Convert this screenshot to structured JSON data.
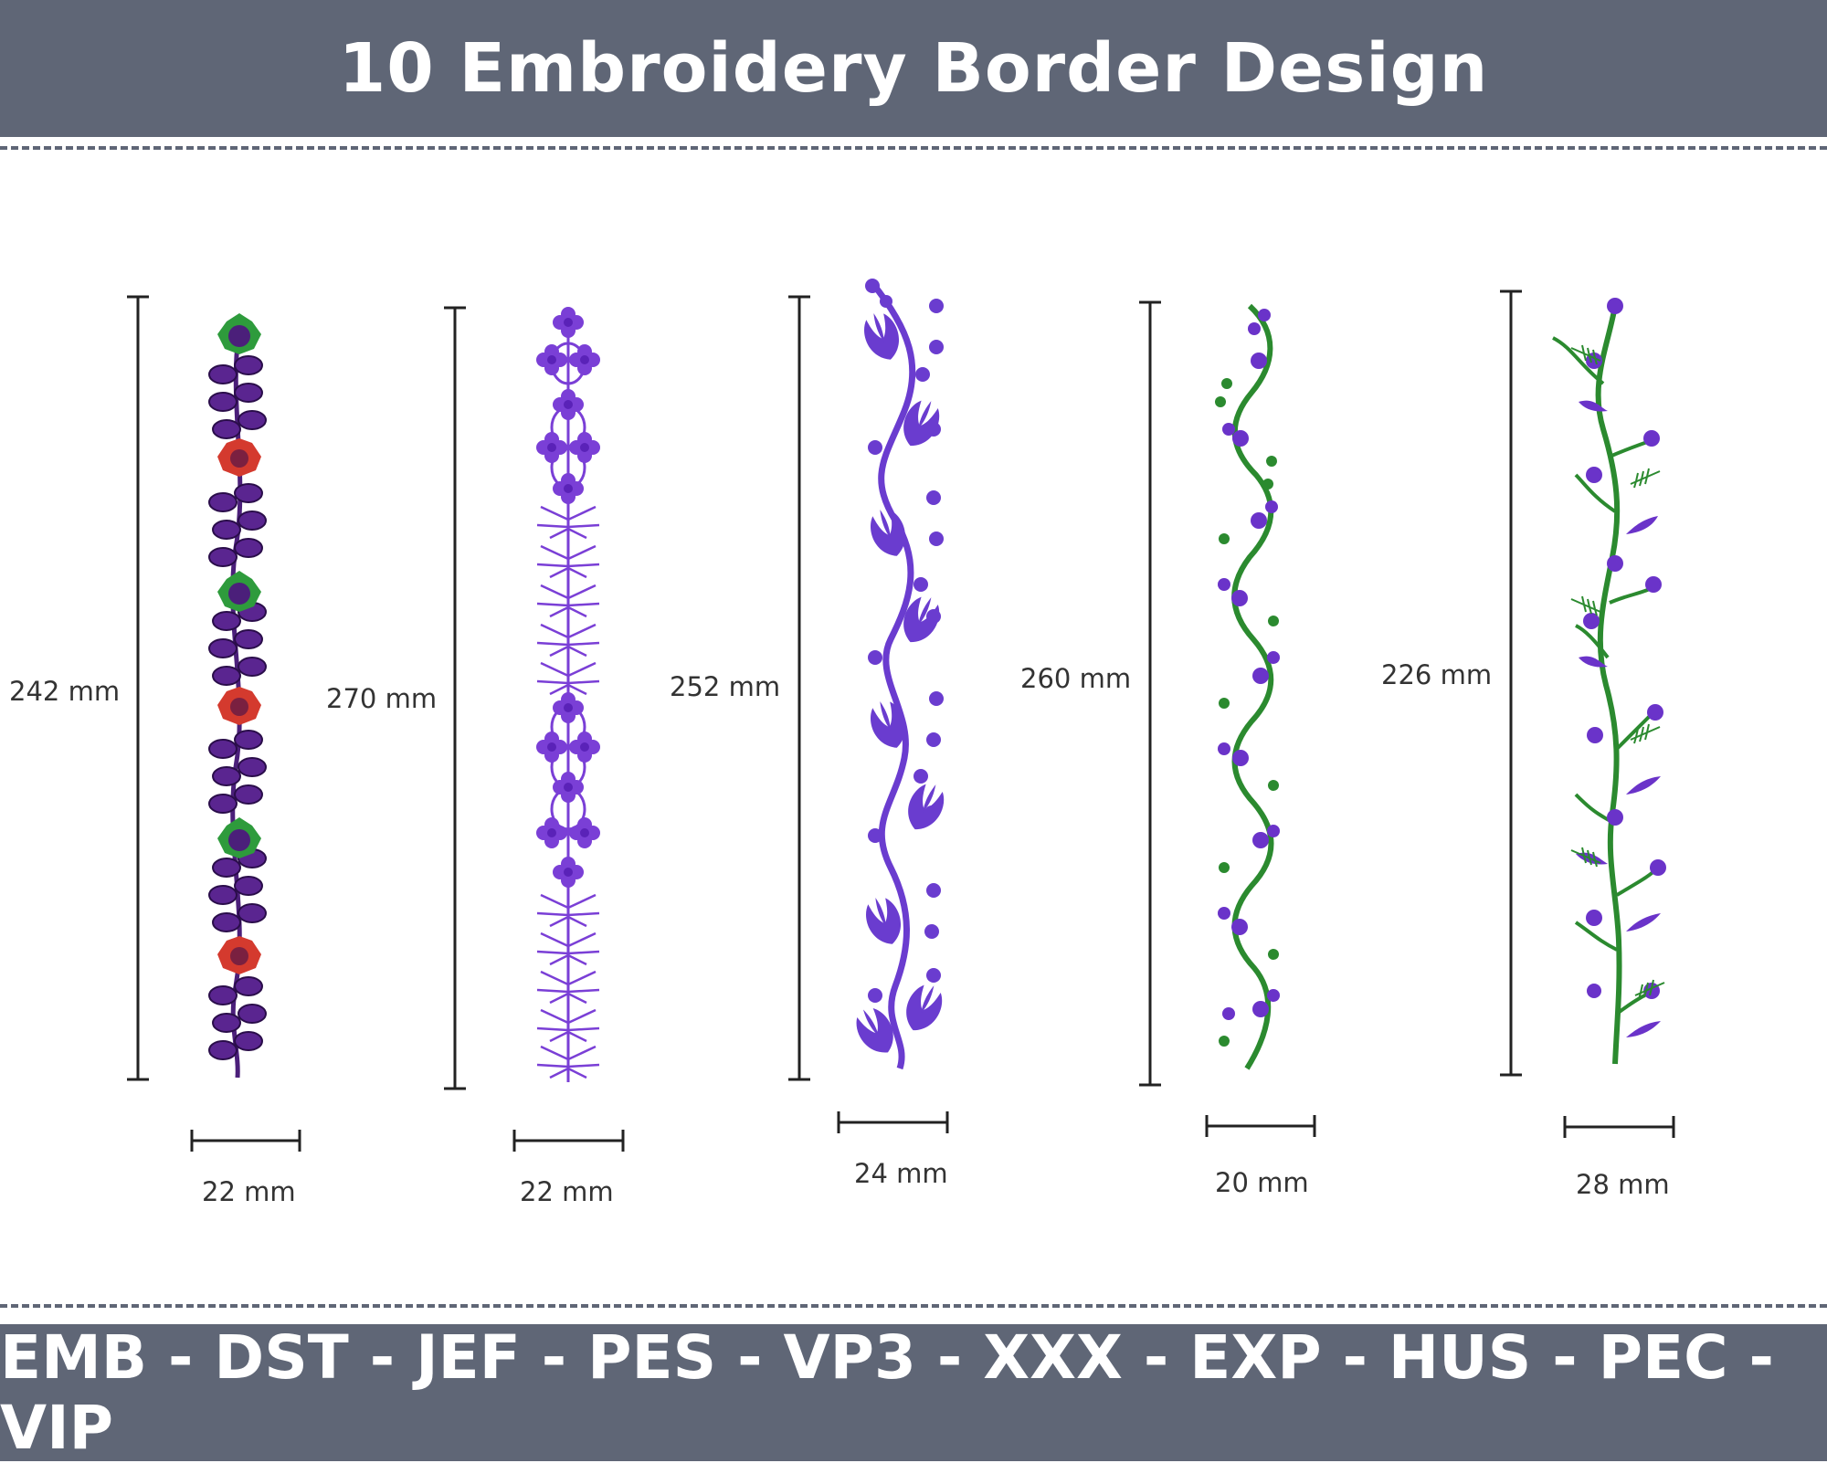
{
  "header": {
    "title": "10 Embroidery Border Design"
  },
  "footer": {
    "formats": "EMB - DST - JEF - PES - VP3 - XXX - EXP - HUS - PEC - VIP"
  },
  "designs": [
    {
      "height": "242 mm",
      "width": "22 mm",
      "colors": {
        "vine": "#4b1f7a",
        "leaf": "#5a2590",
        "flower_a": "#2e9b3c",
        "flower_b": "#d43a2e"
      }
    },
    {
      "height": "270 mm",
      "width": "22 mm",
      "colors": {
        "motif": "#7a3fd6"
      }
    },
    {
      "height": "252 mm",
      "width": "24 mm",
      "colors": {
        "motif": "#6a3ccf"
      }
    },
    {
      "height": "260 mm",
      "width": "20 mm",
      "colors": {
        "vine": "#2b8a2f",
        "bud": "#6a33c9"
      }
    },
    {
      "height": "226 mm",
      "width": "28 mm",
      "colors": {
        "vine": "#2b8a2f",
        "bud": "#6a33c9"
      }
    }
  ]
}
